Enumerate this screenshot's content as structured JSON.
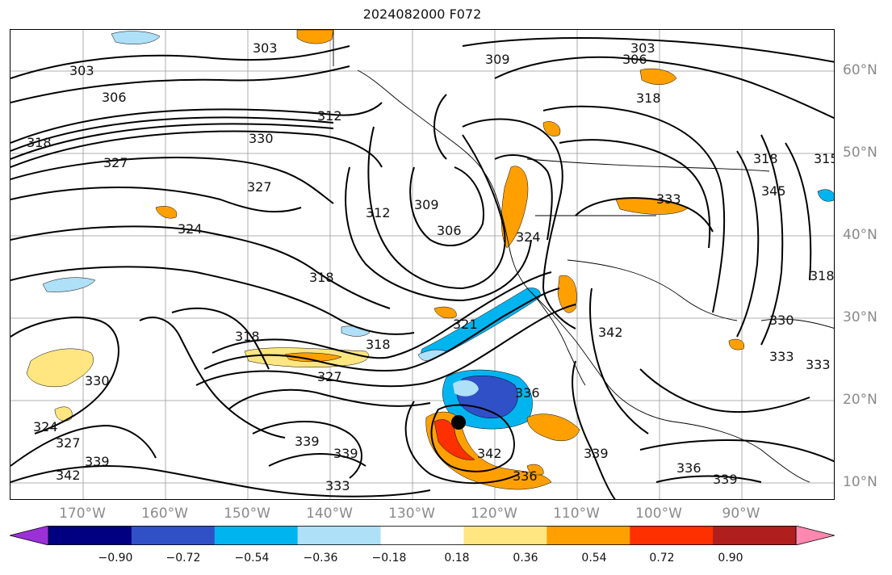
{
  "title": "2024082000 F072",
  "lon_labels": [
    "170°W",
    "160°W",
    "150°W",
    "140°W",
    "130°W",
    "120°W",
    "110°W",
    "100°W",
    "90°W"
  ],
  "lat_labels": [
    "60°N",
    "50°N",
    "40°N",
    "30°N",
    "20°N",
    "10°N"
  ],
  "colorbar": {
    "colors": [
      "#9b30d9",
      "#000080",
      "#3050c8",
      "#00b4f0",
      "#aee0f8",
      "#ffffff",
      "#ffe680",
      "#ffa000",
      "#ff3000",
      "#b01e1e",
      "#ff88b0"
    ],
    "tick_labels": [
      "−0.90",
      "−0.72",
      "−0.54",
      "−0.36",
      "−0.18",
      "0.18",
      "0.36",
      "0.54",
      "0.72",
      "0.90"
    ]
  },
  "contour_labels": [
    {
      "text": "303"
    },
    {
      "text": "303"
    },
    {
      "text": "303"
    },
    {
      "text": "306"
    },
    {
      "text": "306"
    },
    {
      "text": "309"
    },
    {
      "text": "312"
    },
    {
      "text": "312"
    },
    {
      "text": "330"
    },
    {
      "text": "327"
    },
    {
      "text": "327"
    },
    {
      "text": "324"
    },
    {
      "text": "309"
    },
    {
      "text": "306"
    },
    {
      "text": "318"
    },
    {
      "text": "318"
    },
    {
      "text": "318"
    },
    {
      "text": "321"
    },
    {
      "text": "318"
    },
    {
      "text": "327"
    },
    {
      "text": "330"
    },
    {
      "text": "324"
    },
    {
      "text": "327"
    },
    {
      "text": "339"
    },
    {
      "text": "342"
    },
    {
      "text": "339"
    },
    {
      "text": "339"
    },
    {
      "text": "333"
    },
    {
      "text": "336"
    },
    {
      "text": "342"
    },
    {
      "text": "336"
    },
    {
      "text": "339"
    },
    {
      "text": "342"
    },
    {
      "text": "333"
    },
    {
      "text": "324"
    },
    {
      "text": "318"
    },
    {
      "text": "336"
    },
    {
      "text": "339"
    },
    {
      "text": "330"
    },
    {
      "text": "333"
    },
    {
      "text": "333"
    },
    {
      "text": "318"
    },
    {
      "text": "315"
    },
    {
      "text": "345"
    },
    {
      "text": "318"
    }
  ]
}
